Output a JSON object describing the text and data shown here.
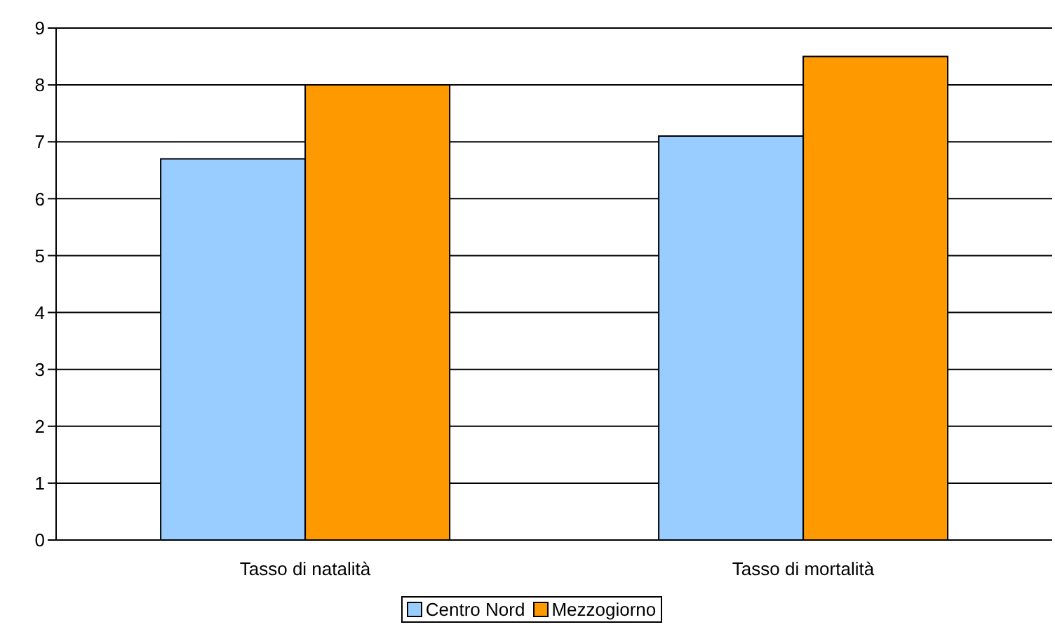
{
  "chart_data": {
    "type": "bar",
    "categories": [
      "Tasso di natalità",
      "Tasso di mortalità"
    ],
    "series": [
      {
        "name": "Centro Nord",
        "color": "#99ccff",
        "values": [
          6.7,
          7.1
        ]
      },
      {
        "name": "Mezzogiorno",
        "color": "#ff9900",
        "values": [
          8.0,
          8.5
        ]
      }
    ],
    "ylim": [
      0,
      9
    ],
    "yticks": [
      0,
      1,
      2,
      3,
      4,
      5,
      6,
      7,
      8,
      9
    ],
    "grid": "y",
    "legend": "bottom"
  }
}
